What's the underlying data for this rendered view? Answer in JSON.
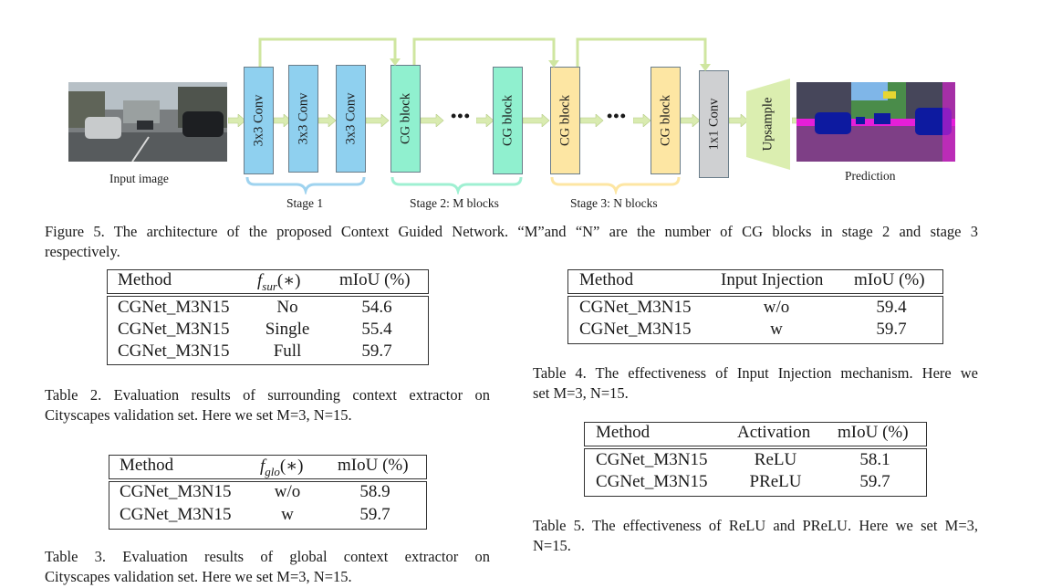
{
  "figure": {
    "input_label": "Input image",
    "prediction_label": "Prediction",
    "stage1_label": "Stage 1",
    "stage2_label": "Stage 2: M blocks",
    "stage3_label": "Stage 3: N blocks",
    "conv_label": "3x3 Conv",
    "cg_label": "CG block",
    "conv1x1_label": "1x1 Conv",
    "upsample_label": "Upsample",
    "ellipsis": "•••",
    "colors": {
      "conv": "#8fd0ef",
      "cg": "#90f0cf",
      "cg3": "#fde6a3",
      "conv1x1": "#cfd0d2",
      "upsample": "#dbeeb0",
      "skip": "#cfe6a0",
      "stage1_brace": "#9fd3ef",
      "stage2_brace": "#9ff0d2",
      "stage3_brace": "#fde6a3",
      "arrow": "#d9ebb0"
    }
  },
  "fig_caption": "Figure 5. The architecture of the proposed Context Guided Network. “M”and “N” are the number of CG blocks in stage 2 and stage 3 respectively.",
  "fig_caption_line1": "Figure 5. The architecture of the proposed Context Guided Network. “M”and “N” are the number of CG blocks in stage 2 and stage 3",
  "fig_caption_line2": "respectively.",
  "table2": {
    "headers": [
      "Method",
      "f_sur(*)",
      "mIoU (%)"
    ],
    "header_f_main": "f",
    "header_f_sub": "sur",
    "header_f_arg": "(∗)",
    "rows": [
      [
        "CGNet_M3N15",
        "No",
        "54.6"
      ],
      [
        "CGNet_M3N15",
        "Single",
        "55.4"
      ],
      [
        "CGNet_M3N15",
        "Full",
        "59.7"
      ]
    ],
    "caption_line1": "Table 2. Evaluation results of surrounding context extractor on",
    "caption_line2": "Cityscapes validation set. Here we set M=3, N=15."
  },
  "table3": {
    "headers": [
      "Method",
      "f_glo(*)",
      "mIoU (%)"
    ],
    "header_f_main": "f",
    "header_f_sub": "glo",
    "header_f_arg": "(∗)",
    "rows": [
      [
        "CGNet_M3N15",
        "w/o",
        "58.9"
      ],
      [
        "CGNet_M3N15",
        "w",
        "59.7"
      ]
    ],
    "caption_line1": "Table 3. Evaluation results of global context extractor on",
    "caption_line2": "Cityscapes validation set. Here we set M=3, N=15."
  },
  "table4": {
    "headers": [
      "Method",
      "Input Injection",
      "mIoU (%)"
    ],
    "rows": [
      [
        "CGNet_M3N15",
        "w/o",
        "59.4"
      ],
      [
        "CGNet_M3N15",
        "w",
        "59.7"
      ]
    ],
    "caption_line1": "Table 4. The effectiveness of Input Injection mechanism. Here we",
    "caption_line2": "set M=3, N=15."
  },
  "table5": {
    "headers": [
      "Method",
      "Activation",
      "mIoU (%)"
    ],
    "rows": [
      [
        "CGNet_M3N15",
        "ReLU",
        "58.1"
      ],
      [
        "CGNet_M3N15",
        "PReLU",
        "59.7"
      ]
    ],
    "caption_line1": "Table 5. The effectiveness of ReLU and PReLU. Here we set M=3,",
    "caption_line2": "N=15."
  }
}
